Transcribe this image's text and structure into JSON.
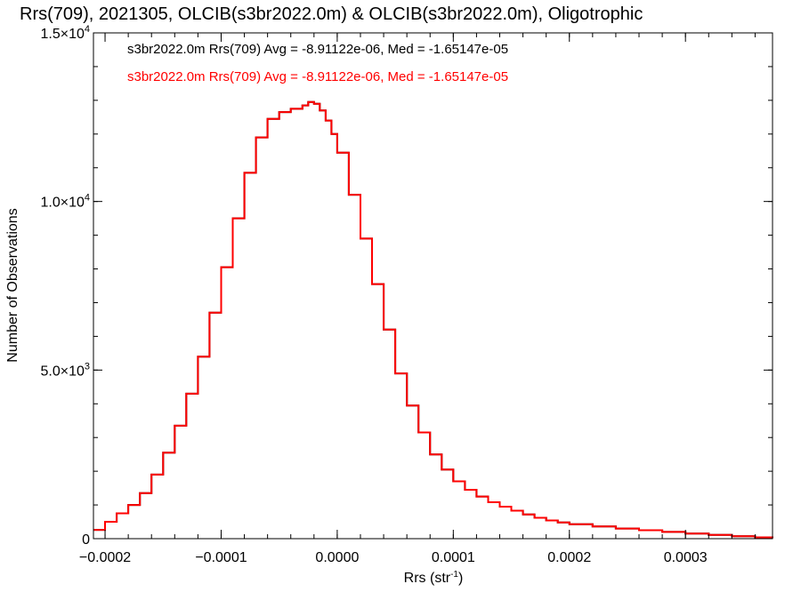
{
  "chart_data": {
    "type": "line",
    "title": "Rrs(709), 2021305, OLCIB(s3br2022.0m) & OLCIB(s3br2022.0m), Oligotrophic",
    "xlabel": "Rrs (str",
    "xlabel_sup": "-1",
    "xlabel_end": ")",
    "ylabel": "Number of Observations",
    "xlim": [
      -0.00021,
      0.000375
    ],
    "ylim": [
      0,
      15000
    ],
    "x_ticks": [
      {
        "value": -0.0002,
        "label": "-0.0002"
      },
      {
        "value": -0.0001,
        "label": "-0.0001"
      },
      {
        "value": 0.0,
        "label": "0.0000"
      },
      {
        "value": 0.0001,
        "label": "0.0001"
      },
      {
        "value": 0.0002,
        "label": "0.0002"
      },
      {
        "value": 0.0003,
        "label": "0.0003"
      }
    ],
    "y_ticks": [
      {
        "value": 0,
        "label": "0",
        "sup": ""
      },
      {
        "value": 5000,
        "label": "5.0×10",
        "sup": "3"
      },
      {
        "value": 10000,
        "label": "1.0×10",
        "sup": "4"
      },
      {
        "value": 15000,
        "label": "1.5×10",
        "sup": "4"
      }
    ],
    "annotations": [
      {
        "text": "s3br2022.0m Rrs(709) Avg = -8.91122e-06, Med = -1.65147e-05",
        "color": "#000000"
      },
      {
        "text": "s3br2022.0m Rrs(709) Avg = -8.91122e-06, Med = -1.65147e-05",
        "color": "#ff0000"
      }
    ],
    "series": [
      {
        "color": "#000000",
        "x": [
          -0.00021,
          -0.0002,
          -0.00019,
          -0.00018,
          -0.00017,
          -0.00016,
          -0.00015,
          -0.00014,
          -0.00013,
          -0.00012,
          -0.00011,
          -0.0001,
          -9e-05,
          -8e-05,
          -7e-05,
          -6e-05,
          -5e-05,
          -4e-05,
          -3e-05,
          -2.5e-05,
          -2e-05,
          -1.5e-05,
          -1e-05,
          -5e-06,
          0.0,
          1e-05,
          2e-05,
          3e-05,
          4e-05,
          5e-05,
          6e-05,
          7e-05,
          8e-05,
          9e-05,
          0.0001,
          0.00011,
          0.00012,
          0.00013,
          0.00014,
          0.00015,
          0.00016,
          0.00017,
          0.00018,
          0.00019,
          0.0002,
          0.00022,
          0.00024,
          0.00026,
          0.00028,
          0.0003,
          0.00032,
          0.00034,
          0.00036,
          0.000375
        ],
        "y": [
          260,
          500,
          750,
          1000,
          1350,
          1900,
          2550,
          3350,
          4300,
          5400,
          6700,
          8050,
          9500,
          10850,
          11900,
          12450,
          12650,
          12750,
          12850,
          12950,
          12900,
          12700,
          12400,
          12000,
          11450,
          10200,
          8900,
          7550,
          6200,
          4900,
          3950,
          3150,
          2500,
          2050,
          1700,
          1450,
          1250,
          1080,
          950,
          830,
          720,
          620,
          540,
          480,
          430,
          360,
          300,
          250,
          200,
          150,
          110,
          70,
          40,
          20
        ]
      },
      {
        "color": "#ff0000",
        "x": [
          -0.00021,
          -0.0002,
          -0.00019,
          -0.00018,
          -0.00017,
          -0.00016,
          -0.00015,
          -0.00014,
          -0.00013,
          -0.00012,
          -0.00011,
          -0.0001,
          -9e-05,
          -8e-05,
          -7e-05,
          -6e-05,
          -5e-05,
          -4e-05,
          -3e-05,
          -2.5e-05,
          -2e-05,
          -1.5e-05,
          -1e-05,
          -5e-06,
          0.0,
          1e-05,
          2e-05,
          3e-05,
          4e-05,
          5e-05,
          6e-05,
          7e-05,
          8e-05,
          9e-05,
          0.0001,
          0.00011,
          0.00012,
          0.00013,
          0.00014,
          0.00015,
          0.00016,
          0.00017,
          0.00018,
          0.00019,
          0.0002,
          0.00022,
          0.00024,
          0.00026,
          0.00028,
          0.0003,
          0.00032,
          0.00034,
          0.00036,
          0.000375
        ],
        "y": [
          260,
          500,
          750,
          1000,
          1350,
          1900,
          2550,
          3350,
          4300,
          5400,
          6700,
          8050,
          9500,
          10850,
          11900,
          12450,
          12650,
          12750,
          12850,
          12950,
          12900,
          12700,
          12400,
          12000,
          11450,
          10200,
          8900,
          7550,
          6200,
          4900,
          3950,
          3150,
          2500,
          2050,
          1700,
          1450,
          1250,
          1080,
          950,
          830,
          720,
          620,
          540,
          480,
          430,
          360,
          300,
          250,
          200,
          150,
          110,
          70,
          40,
          20
        ]
      }
    ],
    "grid": false
  }
}
